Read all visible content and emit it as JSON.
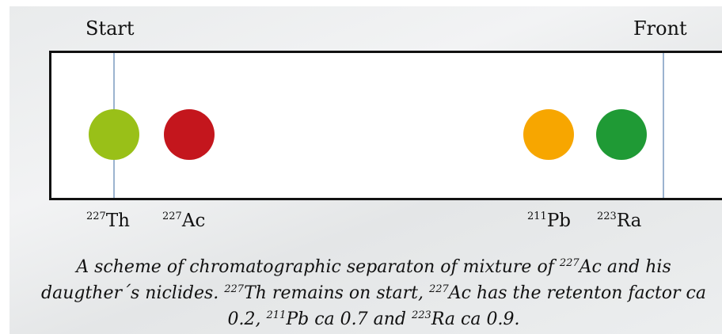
{
  "labels": {
    "start": "Start",
    "front": "Front"
  },
  "spots": [
    {
      "mass": "227",
      "element": "Th",
      "color": "#99c018"
    },
    {
      "mass": "227",
      "element": "Ac",
      "color": "#c4161d"
    },
    {
      "mass": "211",
      "element": "Pb",
      "color": "#f7a600"
    },
    {
      "mass": "223",
      "element": "Ra",
      "color": "#1f9a35"
    }
  ],
  "caption": {
    "t1": "A scheme of chromatographic separaton of mixture of ",
    "m1": "227",
    "t2": "Ac and his daugther´s niclides. ",
    "m2": "227",
    "t3": "Th remains on start, ",
    "m3": "227",
    "t4": "Ac has the retenton factor ca 0.2, ",
    "m4": "211",
    "t5": "Pb ca 0.7 and ",
    "m5": "223",
    "t6": "Ra ca 0.9."
  },
  "colors": {
    "plate_border": "#111111",
    "guide_line": "#9bb3cf"
  }
}
